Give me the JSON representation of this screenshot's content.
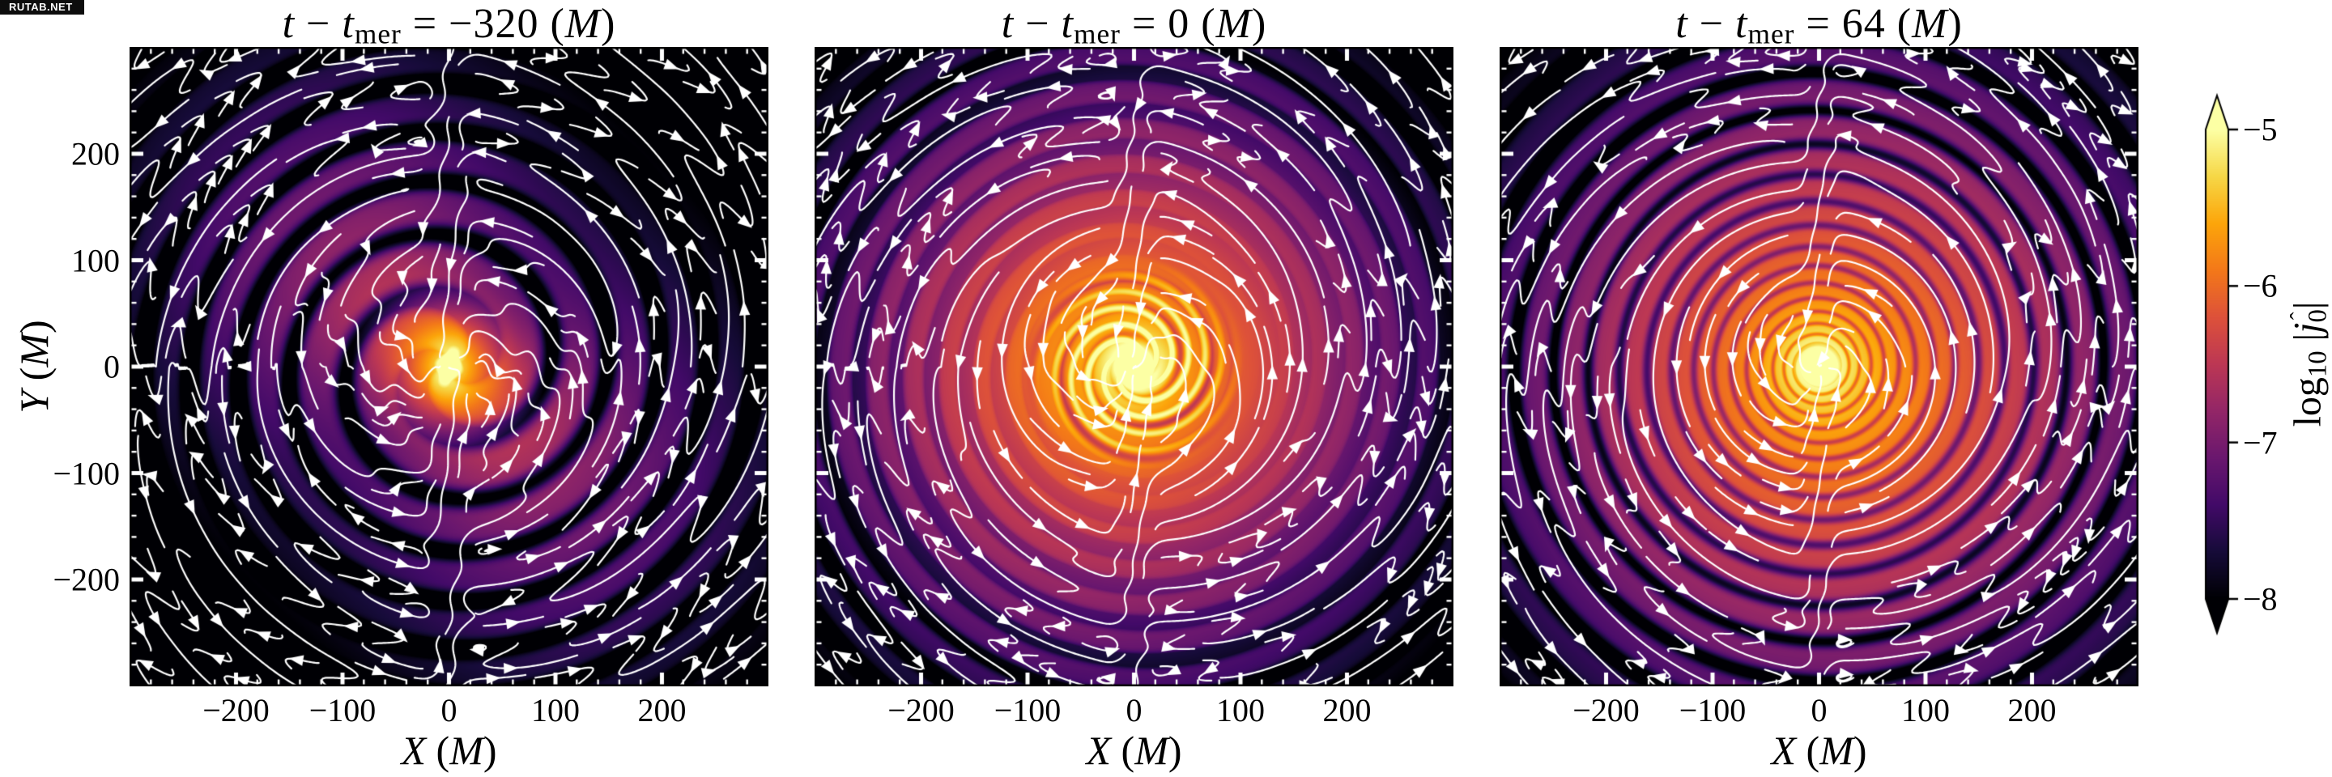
{
  "watermark": {
    "text": "RUTAB.NET"
  },
  "chart_data": {
    "type": "heatmap",
    "description": "Three-panel streamline plot of log10 |j_0hat| around a binary neutron star merger at times t-t_mer = -320, 0, 64 (M); inferno colormap, white streamlines with arrows.",
    "xlabel_tokens": [
      {
        "t": "X",
        "it": true
      },
      {
        "t": " (",
        "it": false
      },
      {
        "t": "M",
        "it": true
      },
      {
        "t": ")",
        "it": false
      }
    ],
    "ylabel_tokens": [
      {
        "t": "Y",
        "it": true
      },
      {
        "t": " (",
        "it": false
      },
      {
        "t": "M",
        "it": true
      },
      {
        "t": ")",
        "it": false
      }
    ],
    "xlabel": "X (M)",
    "ylabel": "Y (M)",
    "xlim": [
      -300,
      300
    ],
    "ylim": [
      -300,
      300
    ],
    "x_ticks": [
      {
        "v": -200,
        "label": "−200"
      },
      {
        "v": -100,
        "label": "−100"
      },
      {
        "v": 0,
        "label": "0"
      },
      {
        "v": 100,
        "label": "100"
      },
      {
        "v": 200,
        "label": "200"
      }
    ],
    "y_ticks": [
      {
        "v": 200,
        "label": "200"
      },
      {
        "v": 100,
        "label": "100"
      },
      {
        "v": 0,
        "label": "0"
      },
      {
        "v": -100,
        "label": "−100"
      },
      {
        "v": -200,
        "label": "−200"
      }
    ],
    "minor_tick_step": 20,
    "grid": false,
    "panels": [
      {
        "time_M": -320,
        "title": "t − t_mer = −320 (M)",
        "title_tokens": [
          {
            "t": "t",
            "it": true
          },
          {
            "t": " − ",
            "it": false
          },
          {
            "t": "t",
            "it": true
          },
          {
            "t": "mer",
            "sub": true
          },
          {
            "t": " = −320 (",
            "it": false
          },
          {
            "t": "M",
            "it": true
          },
          {
            "t": ")",
            "it": false
          }
        ],
        "kind": "binary",
        "field": {
          "corePeak": -4.35,
          "coreSep": 11,
          "coreAngleDeg": 72,
          "coreA": 23,
          "coreB": 13,
          "haloBase": -4.95,
          "haloScale": 30,
          "envA": 1.45,
          "envR": 48,
          "envB": -6.41,
          "envC": 213,
          "envM": 0.3,
          "envMm": 2,
          "envMphi": 1.57,
          "depthIn": 1.55,
          "depth": 1.3,
          "depthR": 80,
          "depthW": 40,
          "m": 2,
          "lam0": 115,
          "lamInf": 44,
          "lamTau": 60,
          "phase0": 4.7,
          "q": 3.0,
          "floor": -8.3
        },
        "flow": {
          "rot": 1.1,
          "rotSat": 50,
          "waveAmpIn": 0.75,
          "waveAmp": 2.0,
          "waveLen": 46,
          "waveM": 2,
          "wavePhase": 1.2,
          "waveOnR": 180,
          "waveOnW": 55,
          "radial": 0.3,
          "radialOnR": 160,
          "radialOnW": 70,
          "sheetS": 5.5,
          "sheetW": 16,
          "din": 0.55,
          "dinR": 160,
          "noise": 0.045,
          "seed": 11
        }
      },
      {
        "time_M": 0,
        "title": "t − t_mer = 0 (M)",
        "title_tokens": [
          {
            "t": "t",
            "it": true
          },
          {
            "t": " − ",
            "it": false
          },
          {
            "t": "t",
            "it": true
          },
          {
            "t": "mer",
            "sub": true
          },
          {
            "t": " = 0 (",
            "it": false
          },
          {
            "t": "M",
            "it": true
          },
          {
            "t": ")",
            "it": false
          }
        ],
        "kind": "merger",
        "field": {
          "corePeak": -4.4,
          "coreSigma": 24,
          "pinBase": -4.5,
          "pinDecay": 110,
          "pinM": 5,
          "pinLen": 16,
          "pinAmp": 0.7,
          "pinOffR": 85,
          "pinOffW": 24,
          "pinPhase": 0.7,
          "envA": 0.9,
          "envR": 30,
          "envB": -5.36,
          "envC": 150,
          "envM": 0.1,
          "envMm": 1,
          "envMphi": 3.14,
          "depthIn": 0.7,
          "depth": 1.2,
          "depthR": 120,
          "depthW": 70,
          "m": 2,
          "lam0": 25,
          "lamSlope": 0.04,
          "phase0": 0.9,
          "q": 3.0,
          "floor": -8.3
        },
        "flow": {
          "rot": 1.1,
          "rotSat": 45,
          "waveAmpIn": 0.4,
          "waveAmp": 2.0,
          "waveLen": 34,
          "waveM": 2,
          "wavePhase": 2.4,
          "waveOnR": 195,
          "waveOnW": 55,
          "radial": 0.3,
          "radialOnR": 175,
          "radialOnW": 70,
          "sheetS": 5.2,
          "sheetW": 15,
          "din": 0.45,
          "dinR": 90,
          "noise": 0.045,
          "seed": 23
        }
      },
      {
        "time_M": 64,
        "title": "t − t_mer = 64 (M)",
        "title_tokens": [
          {
            "t": "t",
            "it": true
          },
          {
            "t": " − ",
            "it": false
          },
          {
            "t": "t",
            "it": true
          },
          {
            "t": "mer",
            "sub": true
          },
          {
            "t": " = 64 (",
            "it": false
          },
          {
            "t": "M",
            "it": true
          },
          {
            "t": ")",
            "it": false
          }
        ],
        "kind": "remnant",
        "field": {
          "corePeak": -4.35,
          "coreSigma": 22,
          "envA": 0.55,
          "envR": 40,
          "envB": -5.34,
          "envC": 160,
          "envM": 0.1,
          "envMm": 1,
          "envMphi": 0.8,
          "depthIn": 0.7,
          "depth": 1.2,
          "depthR": 160,
          "depthW": 100,
          "m": 1,
          "lam0": 6.0,
          "lamSlope": 0.115,
          "phase0": 1.6,
          "q": 3.0,
          "floor": -8.3
        },
        "flow": {
          "rot": 1.25,
          "rotSat": 40,
          "waveAmpIn": 0.4,
          "waveAmp": 2.0,
          "waveLen": 32,
          "waveM": 1,
          "wavePhase": 0.4,
          "waveOnR": 215,
          "waveOnW": 60,
          "radial": 0.3,
          "radialOnR": 195,
          "radialOnW": 75,
          "sheetS": 5.6,
          "sheetW": 13,
          "din": 0.4,
          "dinR": 70,
          "noise": 0.045,
          "seed": 37
        }
      }
    ],
    "colorbar": {
      "label": "log10 |j_0hat|",
      "label_tokens": [
        {
          "t": "log",
          "it": false
        },
        {
          "t": "10",
          "sub": true
        },
        {
          "t": " |",
          "it": false
        },
        {
          "t": "j",
          "it": true
        },
        {
          "t": "0",
          "sub": true,
          "hat": true
        },
        {
          "t": "|",
          "it": false
        }
      ],
      "ticks": [
        {
          "v": -5,
          "label": "−5"
        },
        {
          "v": -6,
          "label": "−6"
        },
        {
          "v": -7,
          "label": "−7"
        },
        {
          "v": -8,
          "label": "−8"
        }
      ],
      "vmin": -8,
      "vmax": -5,
      "extend": "both",
      "colormap": "inferno"
    },
    "colormap_stops": [
      "#000004",
      "#160b39",
      "#420a68",
      "#6a176e",
      "#932667",
      "#bc3754",
      "#dd513a",
      "#f37819",
      "#fca50a",
      "#f6d746",
      "#fcffa4"
    ],
    "stream_color": "#ffffff",
    "tick_color": "#ffffff",
    "legend": null
  }
}
